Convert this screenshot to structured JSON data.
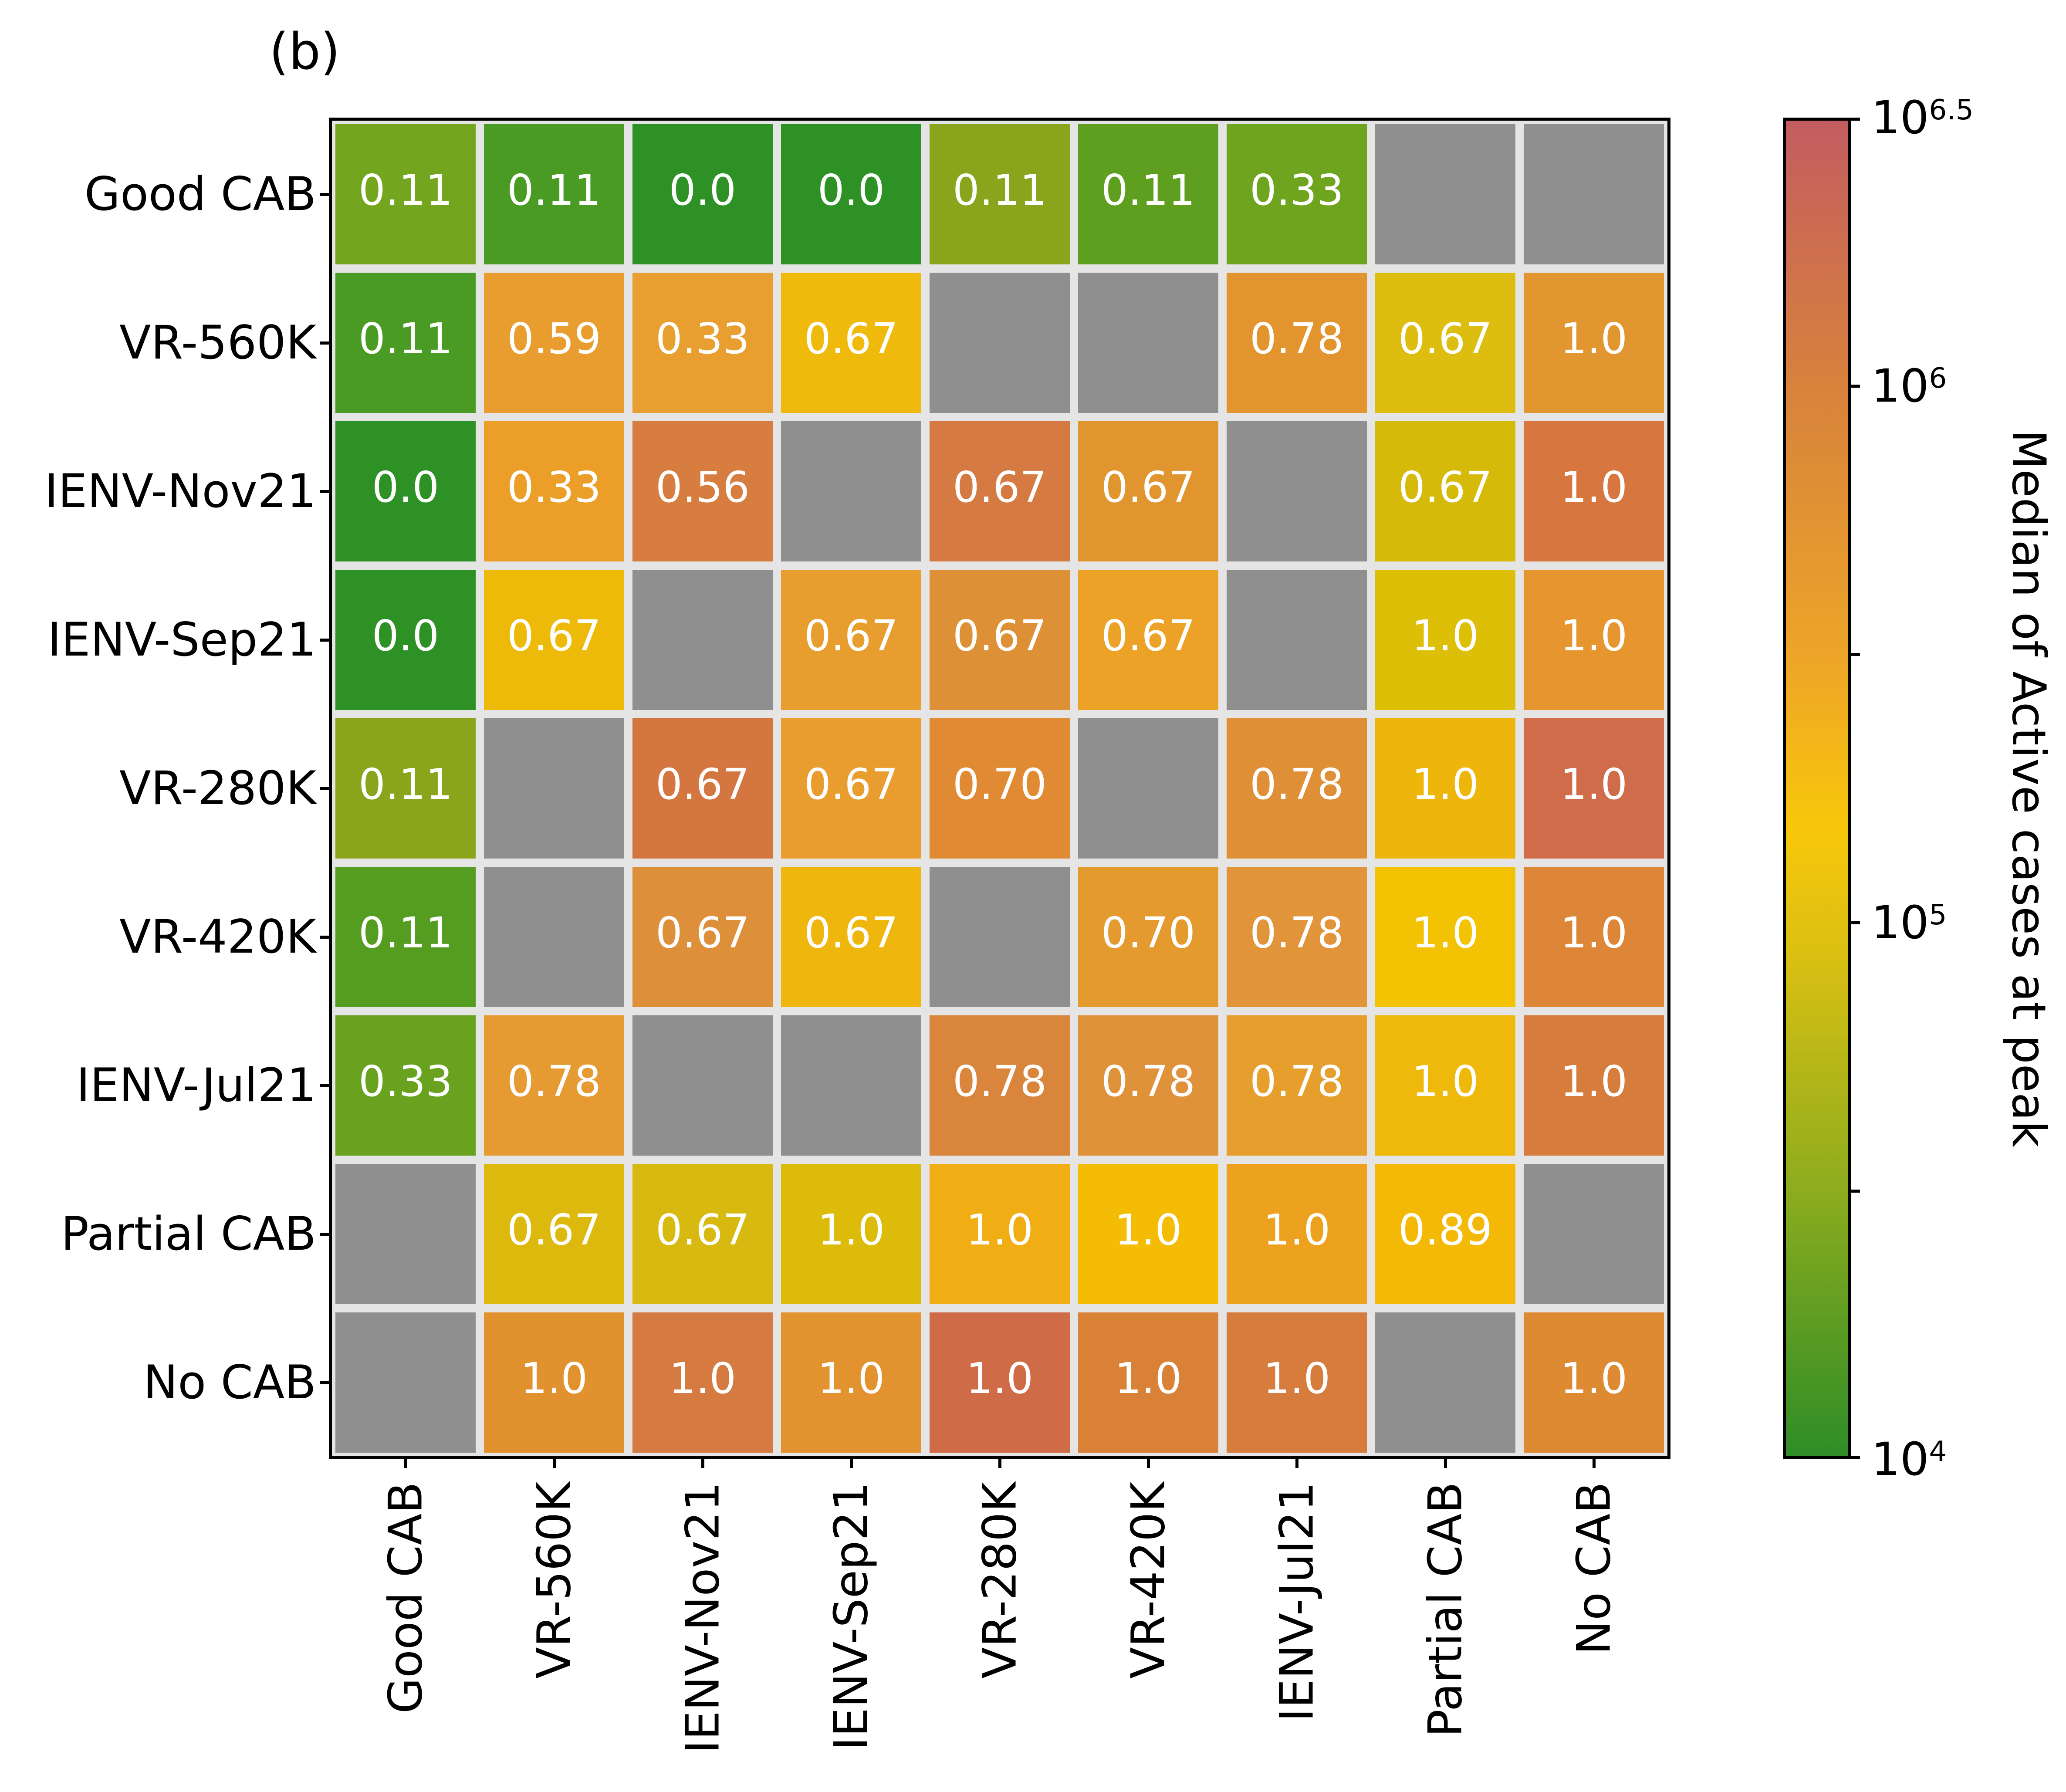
{
  "title": "(b)",
  "chart_data": {
    "type": "heatmap",
    "title": "(b)",
    "x_categories": [
      "Good CAB",
      "VR-560K",
      "IENV-Nov21",
      "IENV-Sep21",
      "VR-280K",
      "VR-420K",
      "IENV-Jul21",
      "Partial CAB",
      "No CAB"
    ],
    "y_categories": [
      "Good CAB",
      "VR-560K",
      "IENV-Nov21",
      "IENV-Sep21",
      "VR-280K",
      "VR-420K",
      "IENV-Jul21",
      "Partial CAB",
      "No CAB"
    ],
    "values": [
      [
        0.11,
        0.11,
        0.0,
        0.0,
        0.11,
        0.11,
        0.33,
        null,
        null
      ],
      [
        0.11,
        0.59,
        0.33,
        0.67,
        null,
        null,
        0.78,
        0.67,
        1.0
      ],
      [
        0.0,
        0.33,
        0.56,
        null,
        0.67,
        0.67,
        null,
        0.67,
        1.0
      ],
      [
        0.0,
        0.67,
        null,
        0.67,
        0.67,
        0.67,
        null,
        1.0,
        1.0
      ],
      [
        0.11,
        null,
        0.67,
        0.67,
        0.7,
        null,
        0.78,
        1.0,
        1.0
      ],
      [
        0.11,
        null,
        0.67,
        0.67,
        null,
        0.7,
        0.78,
        1.0,
        1.0
      ],
      [
        0.33,
        0.78,
        null,
        null,
        0.78,
        0.78,
        0.78,
        1.0,
        1.0
      ],
      [
        null,
        0.67,
        0.67,
        1.0,
        1.0,
        1.0,
        1.0,
        0.89,
        null
      ],
      [
        null,
        1.0,
        1.0,
        1.0,
        1.0,
        1.0,
        1.0,
        null,
        1.0
      ]
    ],
    "value_labels": [
      [
        "0.11",
        "0.11",
        "0.0",
        "0.0",
        "0.11",
        "0.11",
        "0.33",
        null,
        null
      ],
      [
        "0.11",
        "0.59",
        "0.33",
        "0.67",
        null,
        null,
        "0.78",
        "0.67",
        "1.0"
      ],
      [
        "0.0",
        "0.33",
        "0.56",
        null,
        "0.67",
        "0.67",
        null,
        "0.67",
        "1.0"
      ],
      [
        "0.0",
        "0.67",
        null,
        "0.67",
        "0.67",
        "0.67",
        null,
        "1.0",
        "1.0"
      ],
      [
        "0.11",
        null,
        "0.67",
        "0.67",
        "0.70",
        null,
        "0.78",
        "1.0",
        "1.0"
      ],
      [
        "0.11",
        null,
        "0.67",
        "0.67",
        null,
        "0.70",
        "0.78",
        "1.0",
        "1.0"
      ],
      [
        "0.33",
        "0.78",
        null,
        null,
        "0.78",
        "0.78",
        "0.78",
        "1.0",
        "1.0"
      ],
      [
        null,
        "0.67",
        "0.67",
        "1.0",
        "1.0",
        "1.0",
        "1.0",
        "0.89",
        null
      ],
      [
        null,
        "1.0",
        "1.0",
        "1.0",
        "1.0",
        "1.0",
        "1.0",
        null,
        "1.0"
      ]
    ],
    "cell_colors": [
      [
        "#74a51e",
        "#4a9b23",
        "#2d9125",
        "#2d9125",
        "#8aa41c",
        "#5f9f1f",
        "#6ea41e",
        null,
        null
      ],
      [
        "#4a9b23",
        "#e89d2e",
        "#e89f2f",
        "#efba0c",
        null,
        null,
        "#e2952f",
        "#ddbe10",
        "#e1962f"
      ],
      [
        "#2d9125",
        "#ec9f28",
        "#d67d3f",
        null,
        "#d47a42",
        "#e1952f",
        null,
        "#d6ba0a",
        "#d8763f"
      ],
      [
        "#2d9125",
        "#eeba09",
        null,
        "#e89d2f",
        "#dd9036",
        "#eba227",
        null,
        "#ddbf07",
        "#e7952f"
      ],
      [
        "#8aa41c",
        null,
        "#d4763f",
        "#e89d2e",
        "#e08b34",
        null,
        "#df9036",
        "#eeb60b",
        "#d06c49"
      ],
      [
        "#549d20",
        null,
        "#de8f3a",
        "#efb60d",
        null,
        "#e59a30",
        "#e1943a",
        "#f2c203",
        "#dd8638"
      ],
      [
        "#68a21e",
        "#e59a32",
        null,
        null,
        "#da853c",
        "#df923a",
        "#e69e2d",
        "#eeb90a",
        "#d67d3e"
      ],
      [
        null,
        "#dcb90c",
        "#d8b90f",
        "#dcbb0a",
        "#f0ad14",
        "#f4bc04",
        "#eda21f",
        "#f4b907",
        null
      ],
      [
        null,
        "#e2912f",
        "#d57b41",
        "#e2932f",
        "#cf6c47",
        "#da8138",
        "#d67d3e",
        null,
        "#dd8a33"
      ]
    ],
    "missing_color": "#8f8f8f",
    "grid_gap_color": "#e5e5e5",
    "value_text_color": "#ffffff",
    "colorbar": {
      "label": "Median of Active cases at peak",
      "scale": "log",
      "range_exponents": [
        4,
        6.5
      ],
      "ticks": [
        {
          "base": "10",
          "exponent": 6.5,
          "exponent_label": "6.5",
          "labeled": true
        },
        {
          "base": "10",
          "exponent": 6,
          "exponent_label": "6",
          "labeled": true
        },
        {
          "base": "10",
          "exponent": 5.5,
          "exponent_label": "5.5",
          "labeled": false
        },
        {
          "base": "10",
          "exponent": 5,
          "exponent_label": "5",
          "labeled": true
        },
        {
          "base": "10",
          "exponent": 4.5,
          "exponent_label": "4.5",
          "labeled": false
        },
        {
          "base": "10",
          "exponent": 4,
          "exponent_label": "4",
          "labeled": true
        }
      ],
      "gradient": [
        {
          "pos": 0.0,
          "color": "#c35d60"
        },
        {
          "pos": 0.2,
          "color": "#d8823c"
        },
        {
          "pos": 0.4,
          "color": "#eda428"
        },
        {
          "pos": 0.53,
          "color": "#f8c70b"
        },
        {
          "pos": 0.62,
          "color": "#dcc012"
        },
        {
          "pos": 0.8,
          "color": "#8dac1e"
        },
        {
          "pos": 1.0,
          "color": "#2e8d26"
        }
      ]
    }
  }
}
